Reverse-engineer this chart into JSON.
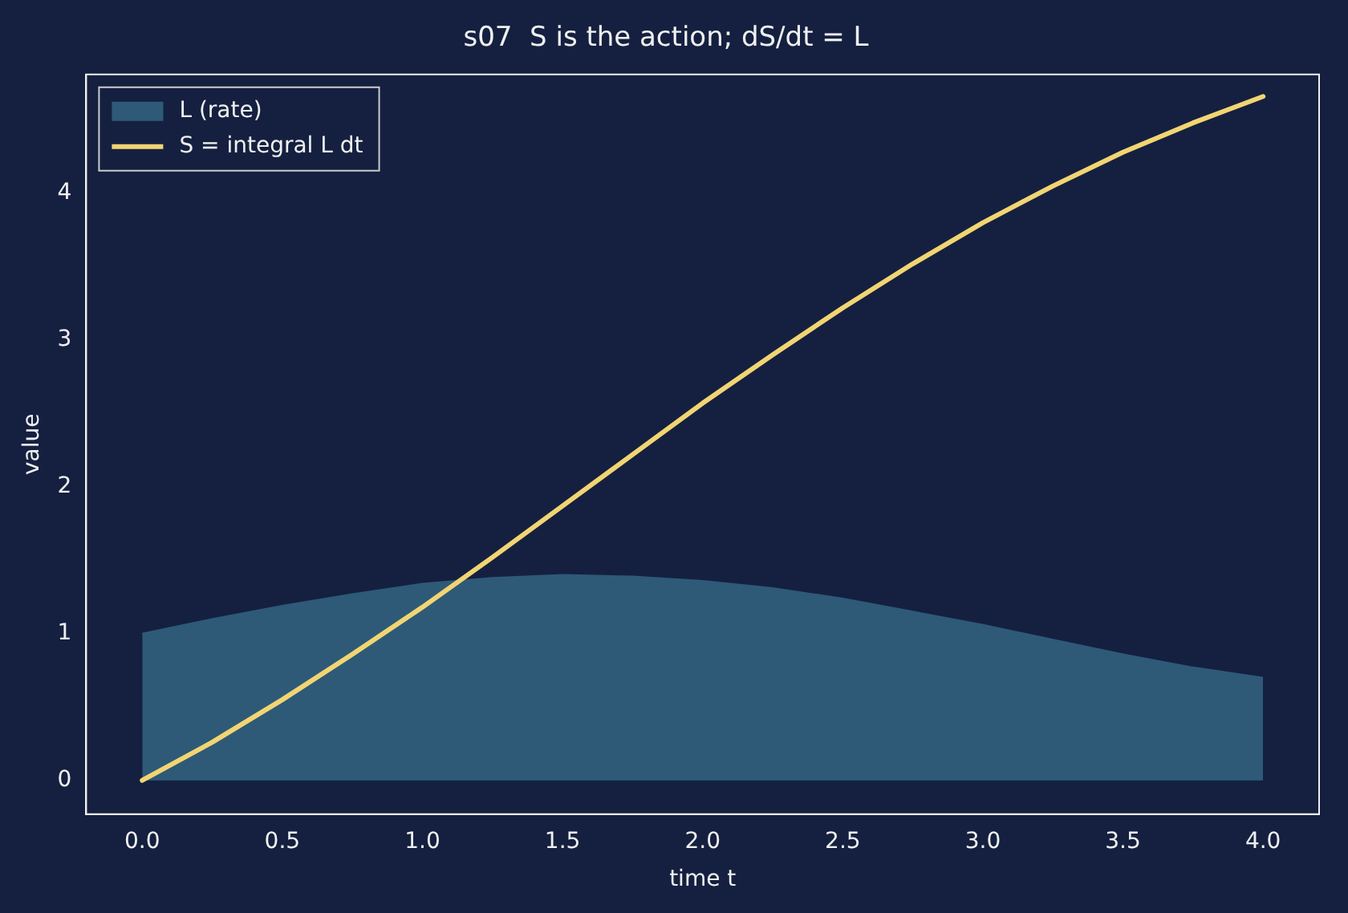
{
  "chart_data": {
    "type": "line",
    "title": "s07  S is the action; dS/dt = L",
    "xlabel": "time t",
    "ylabel": "value",
    "x": [
      0,
      0.25,
      0.5,
      0.75,
      1,
      1.25,
      1.5,
      1.75,
      2,
      2.25,
      2.5,
      2.75,
      3,
      3.25,
      3.5,
      3.75,
      4
    ],
    "series": [
      {
        "name": "L (rate)",
        "type": "area",
        "color": "#2e5a78",
        "values": [
          1.0,
          1.1,
          1.19,
          1.27,
          1.34,
          1.38,
          1.4,
          1.39,
          1.36,
          1.31,
          1.24,
          1.15,
          1.06,
          0.96,
          0.86,
          0.77,
          0.7
        ]
      },
      {
        "name": "S = integral L dt",
        "type": "line",
        "color": "#f2d572",
        "values": [
          0,
          0.26,
          0.55,
          0.86,
          1.18,
          1.52,
          1.87,
          2.22,
          2.57,
          2.9,
          3.22,
          3.52,
          3.8,
          4.05,
          4.28,
          4.48,
          4.66
        ]
      }
    ],
    "xlim": [
      -0.2,
      4.2
    ],
    "xticks": [
      {
        "value": 0,
        "label": "0.0"
      },
      {
        "value": 0.5,
        "label": "0.5"
      },
      {
        "value": 1,
        "label": "1.0"
      },
      {
        "value": 1.5,
        "label": "1.5"
      },
      {
        "value": 2,
        "label": "2.0"
      },
      {
        "value": 2.5,
        "label": "2.5"
      },
      {
        "value": 3,
        "label": "3.0"
      },
      {
        "value": 3.5,
        "label": "3.5"
      },
      {
        "value": 4,
        "label": "4.0"
      }
    ],
    "ylim": [
      -0.23,
      4.81
    ],
    "yticks": [
      0,
      1,
      2,
      3,
      4
    ],
    "grid": false,
    "legend": "top left",
    "marker": "none",
    "line_style": "solid"
  }
}
